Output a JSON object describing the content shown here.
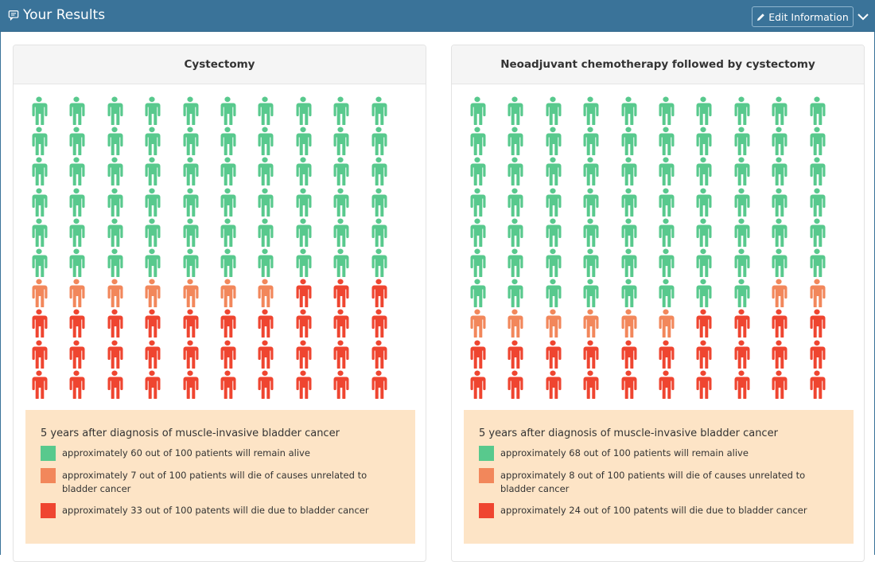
{
  "header": {
    "title": "Your Results",
    "title_icon": "chat-icon",
    "edit_button_label": "Edit Information",
    "edit_icon": "pencil-icon",
    "collapse_icon": "chevron-down-icon",
    "bar_color": "#3a7399"
  },
  "colors": {
    "alive": "#58c98d",
    "unrelated": "#f2875b",
    "bladder": "#ef4530"
  },
  "chart_data": [
    {
      "type": "icon-array",
      "title": "Cystectomy",
      "total": 100,
      "rows": 10,
      "columns": 10,
      "categories": [
        "alive",
        "unrelated",
        "bladder"
      ],
      "values": [
        60,
        7,
        33
      ],
      "legend": {
        "title": "5 years after diagnosis of muscle-invasive bladder cancer",
        "items": [
          {
            "key": "alive",
            "label": "approximately 60 out of 100 patients will remain alive"
          },
          {
            "key": "unrelated",
            "label": "approximately 7 out of 100 patients will die of causes unrelated to bladder cancer"
          },
          {
            "key": "bladder",
            "label": "approximately 33 out of 100 patents will die due to bladder cancer"
          }
        ]
      }
    },
    {
      "type": "icon-array",
      "title": "Neoadjuvant chemotherapy followed by cystectomy",
      "total": 100,
      "rows": 10,
      "columns": 10,
      "categories": [
        "alive",
        "unrelated",
        "bladder"
      ],
      "values": [
        68,
        8,
        24
      ],
      "legend": {
        "title": "5 years after diagnosis of muscle-invasive bladder cancer",
        "items": [
          {
            "key": "alive",
            "label": "approximately 68 out of 100 patients will remain alive"
          },
          {
            "key": "unrelated",
            "label": "approximately 8 out of 100 patients will die of causes unrelated to bladder cancer"
          },
          {
            "key": "bladder",
            "label": "approximately 24 out of 100 patents will die due to bladder cancer"
          }
        ]
      }
    }
  ]
}
